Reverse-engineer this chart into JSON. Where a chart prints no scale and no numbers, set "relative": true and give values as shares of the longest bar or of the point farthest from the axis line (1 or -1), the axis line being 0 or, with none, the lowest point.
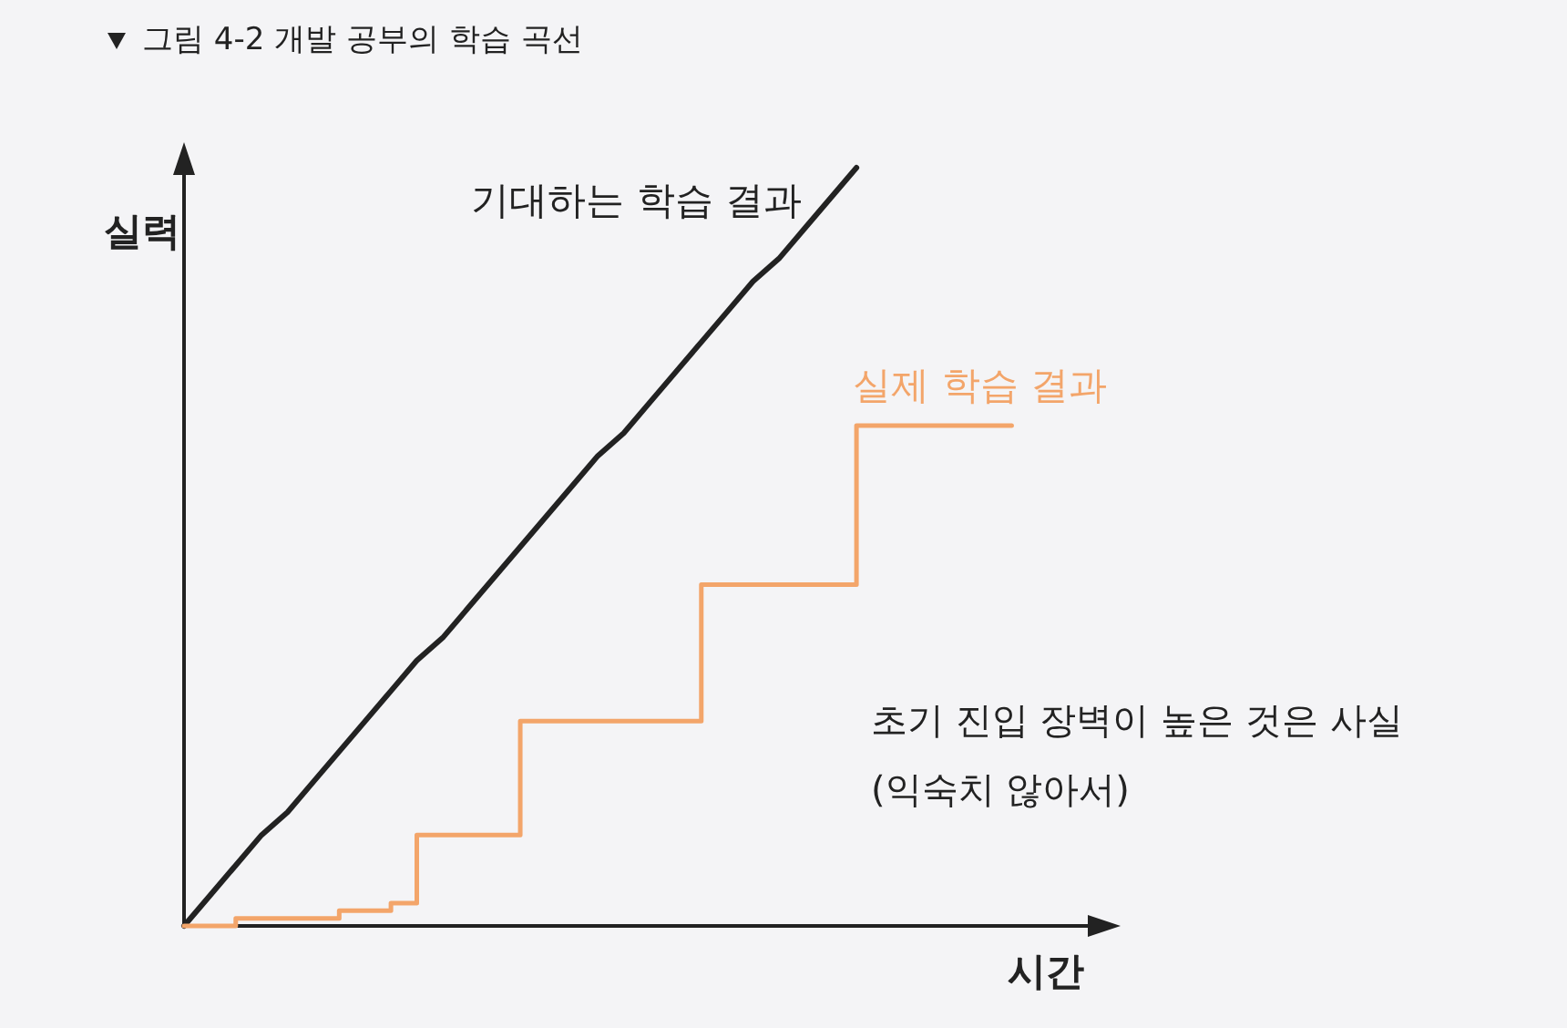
{
  "chart_data": {
    "type": "line",
    "relative": true,
    "title": "그림 4-2 개발 공부의 학습 곡선",
    "xlabel": "시간",
    "ylabel": "실력",
    "line_style": "solid",
    "categories": [
      null,
      null,
      null,
      null,
      null,
      null,
      null,
      null,
      null,
      null,
      null,
      null,
      null,
      null,
      null,
      null,
      null,
      null,
      null,
      null,
      null,
      null,
      null,
      null,
      null,
      null,
      null,
      null,
      null,
      null,
      null,
      null,
      null,
      null,
      null,
      null,
      null
    ],
    "annotations": [
      "초기 진입 장벽이 높은 것은 사실\n(익숙치 않아서)"
    ],
    "series": [
      {
        "name": "기대하는 학습 결과",
        "color": "#222222",
        "values": [
          0,
          0.04,
          0.08,
          0.12,
          0.15,
          0.19,
          0.23,
          0.27,
          0.31,
          0.35,
          0.38,
          0.42,
          0.46,
          0.5,
          0.54,
          0.58,
          0.62,
          0.65,
          0.69,
          0.73,
          0.77,
          0.81,
          0.85,
          0.88,
          0.92,
          0.96,
          1,
          null,
          null,
          null,
          null,
          null,
          null,
          null,
          null,
          null,
          null
        ]
      },
      {
        "name": "실제 학습 결과",
        "type": "step",
        "color": "#f3a56a",
        "values": [
          0,
          0,
          0.01,
          0.01,
          0.01,
          0.01,
          0.02,
          0.02,
          0.03,
          0.12,
          0.12,
          0.12,
          0.12,
          0.27,
          0.27,
          0.27,
          0.27,
          0.27,
          0.27,
          0.27,
          0.45,
          0.45,
          0.45,
          0.45,
          0.45,
          0.45,
          0.66,
          0.66,
          0.66,
          0.66,
          0.66,
          0.66,
          0.66,
          null,
          null,
          null,
          null
        ]
      }
    ]
  }
}
